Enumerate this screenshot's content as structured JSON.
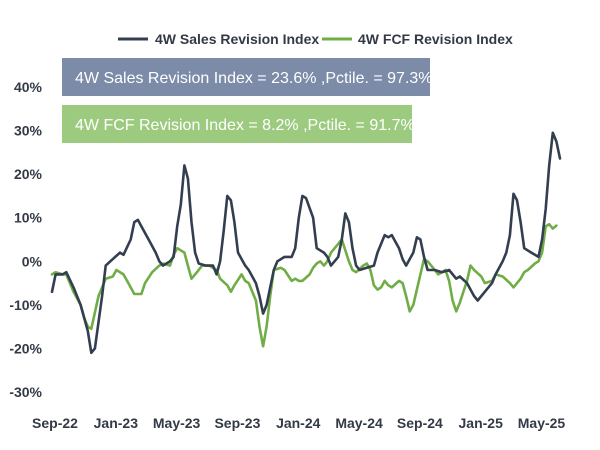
{
  "chart_data": {
    "type": "line",
    "title": "",
    "xlabel": "",
    "ylabel": "",
    "ylim": [
      -30,
      40
    ],
    "ytick_labels": [
      "40%",
      "30%",
      "20%",
      "10%",
      "0%",
      "-10%",
      "-20%",
      "-30%"
    ],
    "yticks": [
      40,
      30,
      20,
      10,
      0,
      -10,
      -20,
      -30
    ],
    "x_tick_labels": [
      "Sep-22",
      "Jan-23",
      "May-23",
      "Sep-23",
      "Jan-24",
      "May-24",
      "Sep-24",
      "Jan-25",
      "May-25"
    ],
    "x_tick_positions": [
      0,
      17,
      34,
      51,
      68,
      85,
      102,
      119,
      136
    ],
    "x_count": 150,
    "legend": {
      "position": "top-center"
    },
    "series": [
      {
        "name": "4W Sales Revision Index",
        "color": "#333f50",
        "points": [
          [
            0,
            -7
          ],
          [
            1,
            -3
          ],
          [
            3,
            -3
          ],
          [
            4,
            -2.5
          ],
          [
            6,
            -6
          ],
          [
            8,
            -10
          ],
          [
            10,
            -16
          ],
          [
            11,
            -21
          ],
          [
            12,
            -20
          ],
          [
            14,
            -8
          ],
          [
            15,
            -1
          ],
          [
            17,
            0.5
          ],
          [
            19,
            2
          ],
          [
            20,
            1.5
          ],
          [
            22,
            5
          ],
          [
            23,
            9
          ],
          [
            24,
            9.5
          ],
          [
            25,
            8
          ],
          [
            27,
            5
          ],
          [
            29,
            2
          ],
          [
            30,
            0
          ],
          [
            31,
            -1
          ],
          [
            33,
            0
          ],
          [
            34,
            1
          ],
          [
            35,
            8
          ],
          [
            36,
            13
          ],
          [
            37,
            22
          ],
          [
            38,
            19
          ],
          [
            39,
            9
          ],
          [
            40,
            2
          ],
          [
            41,
            -0.5
          ],
          [
            43,
            -1
          ],
          [
            45,
            -1
          ],
          [
            46,
            -3
          ],
          [
            47,
            0
          ],
          [
            48,
            7
          ],
          [
            49,
            15
          ],
          [
            50,
            14
          ],
          [
            51,
            9
          ],
          [
            52,
            2
          ],
          [
            54,
            -1
          ],
          [
            55,
            -2
          ],
          [
            57,
            -5
          ],
          [
            58,
            -8
          ],
          [
            59,
            -12
          ],
          [
            60,
            -10
          ],
          [
            62,
            -2
          ],
          [
            63,
            0
          ],
          [
            65,
            1
          ],
          [
            67,
            1
          ],
          [
            68,
            3
          ],
          [
            69,
            10
          ],
          [
            70,
            15
          ],
          [
            71,
            14.5
          ],
          [
            73,
            10
          ],
          [
            74,
            3
          ],
          [
            76,
            2
          ],
          [
            77,
            1
          ],
          [
            78,
            -1
          ],
          [
            80,
            1
          ],
          [
            81,
            5
          ],
          [
            82,
            11
          ],
          [
            83,
            9
          ],
          [
            84,
            3
          ],
          [
            85,
            -1
          ],
          [
            86,
            -2
          ],
          [
            88,
            -1.5
          ],
          [
            90,
            -1
          ],
          [
            91,
            2
          ],
          [
            93,
            6
          ],
          [
            94,
            5.5
          ],
          [
            95,
            6
          ],
          [
            96,
            4.5
          ],
          [
            97,
            3
          ],
          [
            98,
            0.5
          ],
          [
            99,
            -1
          ],
          [
            101,
            2
          ],
          [
            102,
            5.5
          ],
          [
            103,
            5
          ],
          [
            104,
            1
          ],
          [
            105,
            -2
          ],
          [
            107,
            -2
          ],
          [
            109,
            -2.5
          ],
          [
            111,
            -2
          ],
          [
            113,
            -4
          ],
          [
            114,
            -3.5
          ],
          [
            116,
            -5
          ],
          [
            118,
            -8
          ],
          [
            119,
            -9
          ],
          [
            121,
            -7
          ],
          [
            123,
            -5
          ],
          [
            124,
            -3
          ],
          [
            126,
            0
          ],
          [
            127,
            2
          ],
          [
            128,
            6
          ],
          [
            129,
            15.5
          ],
          [
            130,
            14
          ],
          [
            131,
            9
          ],
          [
            132,
            3
          ],
          [
            134,
            2
          ],
          [
            136,
            1
          ],
          [
            137,
            5
          ],
          [
            138,
            12
          ],
          [
            139,
            22
          ],
          [
            140,
            29.5
          ],
          [
            141,
            27.5
          ],
          [
            142,
            23.6
          ]
        ]
      },
      {
        "name": "4W FCF Revision Index",
        "color": "#70ad47",
        "points": [
          [
            0,
            -3
          ],
          [
            1,
            -2.5
          ],
          [
            3,
            -3
          ],
          [
            4,
            -3
          ],
          [
            6,
            -7
          ],
          [
            8,
            -10
          ],
          [
            9,
            -13
          ],
          [
            10,
            -15
          ],
          [
            11,
            -15.5
          ],
          [
            13,
            -8
          ],
          [
            15,
            -4
          ],
          [
            17,
            -3.5
          ],
          [
            18,
            -2
          ],
          [
            20,
            -3
          ],
          [
            21,
            -4.5
          ],
          [
            23,
            -7.5
          ],
          [
            25,
            -7.5
          ],
          [
            26,
            -5
          ],
          [
            28,
            -2.5
          ],
          [
            30,
            -1
          ],
          [
            31,
            -0.5
          ],
          [
            33,
            -1
          ],
          [
            34,
            1.5
          ],
          [
            35,
            3
          ],
          [
            37,
            2
          ],
          [
            38,
            -1
          ],
          [
            39,
            -4
          ],
          [
            40,
            -3
          ],
          [
            42,
            -1
          ],
          [
            44,
            -1
          ],
          [
            46,
            -2
          ],
          [
            47,
            -4
          ],
          [
            49,
            -5.5
          ],
          [
            50,
            -7
          ],
          [
            51,
            -5.5
          ],
          [
            53,
            -3
          ],
          [
            54,
            -4.5
          ],
          [
            55,
            -5
          ],
          [
            57,
            -9
          ],
          [
            58,
            -15
          ],
          [
            59,
            -19.5
          ],
          [
            60,
            -15
          ],
          [
            61,
            -8
          ],
          [
            62,
            -2
          ],
          [
            64,
            -1.5
          ],
          [
            65,
            -2
          ],
          [
            67,
            -4.5
          ],
          [
            68,
            -4
          ],
          [
            69,
            -4.5
          ],
          [
            70,
            -4.5
          ],
          [
            72,
            -3
          ],
          [
            73,
            -1.5
          ],
          [
            74,
            -0.5
          ],
          [
            75,
            0
          ],
          [
            76,
            -1
          ],
          [
            77,
            0
          ],
          [
            78,
            2
          ],
          [
            80,
            4
          ],
          [
            81,
            5
          ],
          [
            83,
            0
          ],
          [
            84,
            -2
          ],
          [
            85,
            -2.5
          ],
          [
            87,
            -1
          ],
          [
            88,
            -0.5
          ],
          [
            89,
            -2
          ],
          [
            90,
            -5.5
          ],
          [
            91,
            -6.5
          ],
          [
            92,
            -6
          ],
          [
            93,
            -4.5
          ],
          [
            94,
            -5.5
          ],
          [
            95,
            -6
          ],
          [
            97,
            -4.5
          ],
          [
            98,
            -5
          ],
          [
            99,
            -8
          ],
          [
            100,
            -11.5
          ],
          [
            101,
            -10
          ],
          [
            103,
            -3
          ],
          [
            104,
            0.5
          ],
          [
            105,
            0
          ],
          [
            106,
            -1
          ],
          [
            108,
            -3
          ],
          [
            110,
            -2
          ],
          [
            111,
            -4.5
          ],
          [
            112,
            -9
          ],
          [
            113,
            -11.5
          ],
          [
            114,
            -9.5
          ],
          [
            116,
            -4.5
          ],
          [
            117,
            -1
          ],
          [
            118,
            -2
          ],
          [
            120,
            -3.5
          ],
          [
            121,
            -5
          ],
          [
            123,
            -4.5
          ],
          [
            124,
            -3
          ],
          [
            126,
            -3.5
          ],
          [
            128,
            -5
          ],
          [
            129,
            -6
          ],
          [
            131,
            -4
          ],
          [
            132,
            -2.5
          ],
          [
            133,
            -2
          ],
          [
            135,
            -0.5
          ],
          [
            136,
            0
          ],
          [
            137,
            2
          ],
          [
            138,
            8
          ],
          [
            139,
            8.5
          ],
          [
            140,
            7.5
          ],
          [
            141,
            8.2
          ]
        ]
      }
    ],
    "annotations": [
      {
        "text": "4W Sales Revision Index = 23.6% ,Pctile. = 97.3%",
        "color": "#7b8ba8"
      },
      {
        "text": "4W FCF Revision Index = 8.2% ,Pctile. = 91.7%",
        "color": "#9ccb80"
      }
    ]
  }
}
